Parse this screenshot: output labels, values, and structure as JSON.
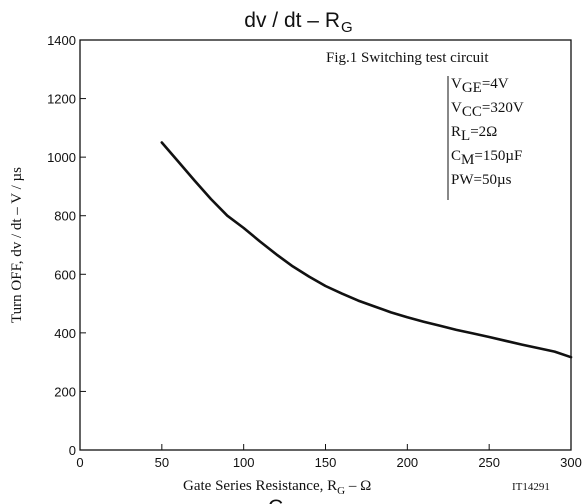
{
  "chart_data": {
    "type": "line",
    "title": "dv / dt  –  R",
    "title_subscript": "G",
    "xlabel": "Gate Series Resistance, R",
    "xlabel_subscript": "G",
    "xlabel_suffix": "  –  Ω",
    "ylabel": "Turn OFF, dv / dt  –  V / µs",
    "xlim": [
      0,
      300
    ],
    "ylim": [
      0,
      1400
    ],
    "x_ticks": [
      "0",
      "50",
      "100",
      "150",
      "200",
      "250",
      "300"
    ],
    "y_ticks": [
      "0",
      "200",
      "400",
      "600",
      "800",
      "1000",
      "1200",
      "1400"
    ],
    "grid": false,
    "figure_code": "IT14291",
    "bottom_cut_text": "C",
    "conditions": {
      "heading": "Fig.1 Switching test circuit",
      "items": [
        {
          "main": "V",
          "sub": "GE",
          "rest": "=4V"
        },
        {
          "main": "V",
          "sub": "CC",
          "rest": "=320V"
        },
        {
          "main": "R",
          "sub": "L",
          "rest": "=2Ω"
        },
        {
          "main": "C",
          "sub": "M",
          "rest": "=150µF"
        },
        {
          "main": "PW=50µs",
          "sub": "",
          "rest": ""
        }
      ]
    },
    "series": [
      {
        "x": [
          50,
          60,
          70,
          80,
          90,
          100,
          110,
          120,
          130,
          140,
          150,
          160,
          170,
          180,
          190,
          200,
          210,
          220,
          230,
          240,
          250,
          260,
          270,
          280,
          290,
          300
        ],
        "y": [
          1050,
          985,
          920,
          857,
          800,
          758,
          712,
          668,
          627,
          592,
          560,
          534,
          510,
          490,
          470,
          453,
          438,
          424,
          410,
          398,
          386,
          373,
          360,
          348,
          336,
          317
        ]
      }
    ]
  }
}
